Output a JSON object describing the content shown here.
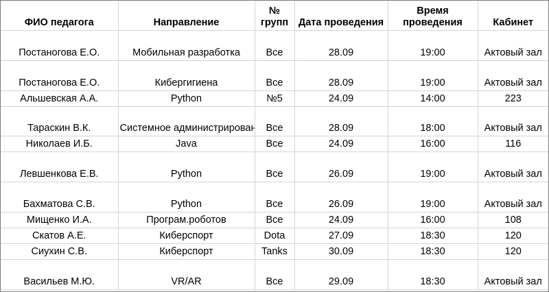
{
  "headers": {
    "teacher": "ФИО педагога",
    "direction": "Направление",
    "groups": "№ групп",
    "date": "Дата проведения",
    "time": "Время проведения",
    "room": "Кабинет"
  },
  "rows": [
    {
      "teacher": "Постаногова Е.О.",
      "direction": "Мобильная разработка",
      "groups": "Все",
      "date": "28.09",
      "time": "19:00",
      "room": "Актовый зал"
    },
    {
      "teacher": "Постаногова Е.О.",
      "direction": "Кибергигиена",
      "groups": "Все",
      "date": "28.09",
      "time": "19:00",
      "room": "Актовый зал"
    },
    {
      "teacher": "Альшевская А.А.",
      "direction": "Python",
      "groups": "№5",
      "date": "24.09",
      "time": "14:00",
      "room": "223"
    },
    {
      "teacher": "Тараскин В.К.",
      "direction": "Системное администрирование",
      "groups": "Все",
      "date": "28.09",
      "time": "18:00",
      "room": "Актовый зал"
    },
    {
      "teacher": "Николаев И.Б.",
      "direction": "Java",
      "groups": "Все",
      "date": "24.09",
      "time": "16:00",
      "room": "116"
    },
    {
      "teacher": "Левшенкова Е.В.",
      "direction": "Python",
      "groups": "Все",
      "date": "26.09",
      "time": "19:00",
      "room": "Актовый зал"
    },
    {
      "teacher": "Бахматова С.В.",
      "direction": "Python",
      "groups": "Все",
      "date": "26.09",
      "time": "19:00",
      "room": "Актовый зал"
    },
    {
      "teacher": "Мищенко И.А.",
      "direction": "Програм.роботов",
      "groups": "Все",
      "date": "24.09",
      "time": "16:00",
      "room": "108"
    },
    {
      "teacher": "Скатов А.Е.",
      "direction": "Киберспорт",
      "groups": "Dota",
      "date": "27.09",
      "time": "18:30",
      "room": "120"
    },
    {
      "teacher": "Сиухин С.В.",
      "direction": "Киберспорт",
      "groups": "Tanks",
      "date": "30.09",
      "time": "18:30",
      "room": "120"
    },
    {
      "teacher": "Васильев М.Ю.",
      "direction": "VR/AR",
      "groups": "Все",
      "date": "29.09",
      "time": "18:30",
      "room": "Актовый зал"
    }
  ]
}
